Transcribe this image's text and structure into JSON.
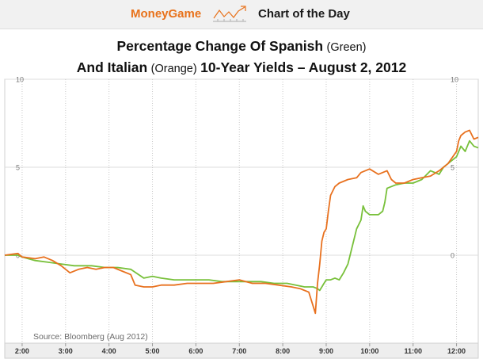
{
  "header": {
    "brand_name": "MoneyGame",
    "section": "Chart of the Day",
    "icon": "rising-trend-chart-icon",
    "brand_color": "#e8721b"
  },
  "chart_data": {
    "type": "line",
    "title_line1": {
      "main": "Percentage Change Of Spanish",
      "note": "(Green)"
    },
    "title_line2": {
      "main_a": "And Italian",
      "note": "(Orange)",
      "main_b": "10-Year Yields – August 2, 2012"
    },
    "source": "Source: Bloomberg (Aug 2012)",
    "x_ticks": [
      "2:00",
      "3:00",
      "4:00",
      "5:00",
      "6:00",
      "7:00",
      "8:00",
      "9:00",
      "10:00",
      "11:00",
      "12:00"
    ],
    "x_range": [
      1.6,
      12.5
    ],
    "y_ticks": [
      "10",
      "5",
      "0"
    ],
    "y_tick_values": [
      10,
      5,
      0
    ],
    "ylim": [
      -5,
      10
    ],
    "grid": true,
    "legend": "none",
    "series": [
      {
        "color": "#78c03a",
        "x": [
          1.6,
          1.9,
          2.0,
          2.3,
          2.6,
          2.9,
          3.2,
          3.6,
          3.9,
          4.2,
          4.5,
          4.8,
          5.0,
          5.2,
          5.5,
          5.8,
          6.0,
          6.3,
          6.6,
          6.9,
          7.2,
          7.5,
          7.8,
          8.1,
          8.3,
          8.5,
          8.7,
          8.8,
          8.85,
          8.9,
          8.95,
          9.0,
          9.1,
          9.2,
          9.3,
          9.4,
          9.5,
          9.6,
          9.7,
          9.8,
          9.85,
          9.9,
          10.0,
          10.2,
          10.3,
          10.35,
          10.4,
          10.6,
          10.8,
          11.0,
          11.2,
          11.4,
          11.6,
          11.7,
          11.8,
          12.0,
          12.1,
          12.2,
          12.3,
          12.4,
          12.5
        ],
        "values": [
          0.0,
          0.0,
          -0.1,
          -0.3,
          -0.4,
          -0.5,
          -0.6,
          -0.6,
          -0.7,
          -0.7,
          -0.8,
          -1.3,
          -1.2,
          -1.3,
          -1.4,
          -1.4,
          -1.4,
          -1.4,
          -1.5,
          -1.5,
          -1.5,
          -1.5,
          -1.6,
          -1.6,
          -1.7,
          -1.8,
          -1.8,
          -1.9,
          -2.0,
          -1.8,
          -1.6,
          -1.4,
          -1.4,
          -1.3,
          -1.4,
          -1.0,
          -0.5,
          0.5,
          1.5,
          2.0,
          2.8,
          2.5,
          2.3,
          2.3,
          2.5,
          3.0,
          3.8,
          4.0,
          4.1,
          4.1,
          4.3,
          4.8,
          4.6,
          5.0,
          5.2,
          5.6,
          6.2,
          5.9,
          6.5,
          6.2,
          6.1
        ]
      },
      {
        "color": "#e8711f",
        "x": [
          1.6,
          1.9,
          2.0,
          2.3,
          2.5,
          2.7,
          2.9,
          3.1,
          3.3,
          3.5,
          3.7,
          3.9,
          4.1,
          4.3,
          4.5,
          4.6,
          4.8,
          5.0,
          5.2,
          5.5,
          5.8,
          6.1,
          6.4,
          6.7,
          7.0,
          7.3,
          7.6,
          7.9,
          8.2,
          8.4,
          8.6,
          8.75,
          8.8,
          8.85,
          8.9,
          8.95,
          9.0,
          9.05,
          9.1,
          9.2,
          9.3,
          9.5,
          9.7,
          9.8,
          10.0,
          10.2,
          10.4,
          10.5,
          10.6,
          10.8,
          11.0,
          11.2,
          11.4,
          11.6,
          11.8,
          12.0,
          12.05,
          12.1,
          12.2,
          12.3,
          12.4,
          12.5
        ],
        "values": [
          0.0,
          0.1,
          -0.1,
          -0.2,
          -0.1,
          -0.3,
          -0.6,
          -1.0,
          -0.8,
          -0.7,
          -0.8,
          -0.7,
          -0.7,
          -0.9,
          -1.1,
          -1.7,
          -1.8,
          -1.8,
          -1.7,
          -1.7,
          -1.6,
          -1.6,
          -1.6,
          -1.5,
          -1.4,
          -1.6,
          -1.6,
          -1.7,
          -1.8,
          -1.9,
          -2.1,
          -3.3,
          -1.6,
          -0.5,
          0.8,
          1.3,
          1.5,
          2.5,
          3.4,
          3.9,
          4.1,
          4.3,
          4.4,
          4.7,
          4.9,
          4.6,
          4.8,
          4.3,
          4.1,
          4.1,
          4.3,
          4.4,
          4.5,
          4.8,
          5.2,
          5.9,
          6.5,
          6.8,
          7.0,
          7.1,
          6.6,
          6.7
        ]
      }
    ]
  }
}
